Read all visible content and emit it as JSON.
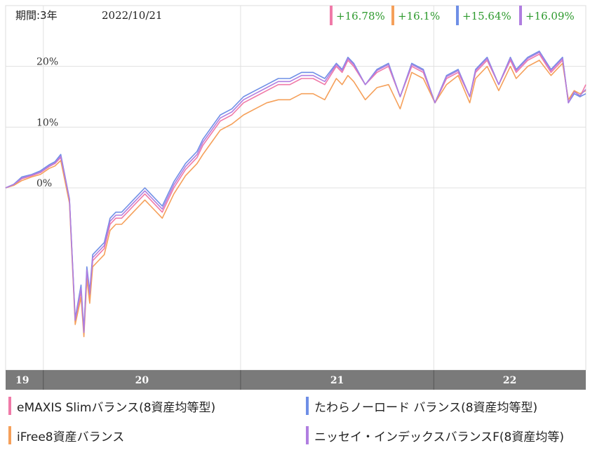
{
  "header": {
    "period_label": "期間:3年",
    "date": "2022/10/21",
    "returns": [
      {
        "text": "+16.78%",
        "color": "#f07aa8"
      },
      {
        "text": "+16.1%",
        "color": "#f5a05a"
      },
      {
        "text": "+15.64%",
        "color": "#6f8fe6"
      },
      {
        "text": "+16.09%",
        "color": "#b07ee0"
      }
    ],
    "return_text_color": "#2e9a2e"
  },
  "chart_data": {
    "type": "line",
    "ylim": [
      -30,
      30
    ],
    "yticks": [
      {
        "value": 0,
        "label": "0%"
      },
      {
        "value": 10,
        "label": "10%"
      },
      {
        "value": 20,
        "label": "20%"
      }
    ],
    "year_axis": [
      {
        "label": "19",
        "start": 0.0,
        "end": 0.065
      },
      {
        "label": "20",
        "start": 0.065,
        "end": 0.405
      },
      {
        "label": "21",
        "start": 0.405,
        "end": 0.738
      },
      {
        "label": "22",
        "start": 0.738,
        "end": 1.0
      }
    ],
    "grid": true,
    "series": [
      {
        "name": "eMAXIS Slimバランス(8資産均等型)",
        "color": "#f07aa8",
        "x": [
          0,
          0.014,
          0.028,
          0.045,
          0.06,
          0.075,
          0.085,
          0.095,
          0.11,
          0.12,
          0.13,
          0.135,
          0.14,
          0.145,
          0.15,
          0.16,
          0.17,
          0.18,
          0.19,
          0.2,
          0.21,
          0.22,
          0.23,
          0.24,
          0.25,
          0.27,
          0.29,
          0.31,
          0.33,
          0.34,
          0.355,
          0.37,
          0.39,
          0.41,
          0.43,
          0.45,
          0.47,
          0.49,
          0.51,
          0.53,
          0.55,
          0.57,
          0.58,
          0.59,
          0.6,
          0.62,
          0.64,
          0.66,
          0.68,
          0.7,
          0.72,
          0.74,
          0.76,
          0.78,
          0.8,
          0.81,
          0.82,
          0.83,
          0.85,
          0.87,
          0.88,
          0.9,
          0.92,
          0.94,
          0.96,
          0.97,
          0.98,
          0.99,
          1.0
        ],
        "y": [
          0,
          0.5,
          1.5,
          2,
          2.5,
          3.5,
          4,
          5,
          -2,
          -22,
          -17,
          -24,
          -14,
          -18,
          -12,
          -11,
          -10,
          -6,
          -5,
          -5,
          -4,
          -3,
          -2,
          -1,
          -2,
          -4,
          0,
          3,
          5,
          7,
          9,
          11,
          12,
          14,
          15,
          16,
          17,
          17,
          18,
          18,
          17,
          20,
          19,
          21,
          20,
          17,
          19,
          20,
          15,
          20,
          19,
          14,
          18,
          19,
          15,
          19,
          20,
          21,
          17,
          21,
          19,
          21,
          22,
          19,
          21,
          14,
          16,
          15,
          17
        ]
      },
      {
        "name": "わらノーロード バランス(8資産均等型)",
        "color": "#6f8fe6",
        "x": [
          0,
          0.014,
          0.028,
          0.045,
          0.06,
          0.075,
          0.085,
          0.095,
          0.11,
          0.12,
          0.13,
          0.135,
          0.14,
          0.145,
          0.15,
          0.16,
          0.17,
          0.18,
          0.19,
          0.2,
          0.21,
          0.22,
          0.23,
          0.24,
          0.25,
          0.27,
          0.29,
          0.31,
          0.33,
          0.34,
          0.355,
          0.37,
          0.39,
          0.41,
          0.43,
          0.45,
          0.47,
          0.49,
          0.51,
          0.53,
          0.55,
          0.57,
          0.58,
          0.59,
          0.6,
          0.62,
          0.64,
          0.66,
          0.68,
          0.7,
          0.72,
          0.74,
          0.76,
          0.78,
          0.8,
          0.81,
          0.82,
          0.83,
          0.85,
          0.87,
          0.88,
          0.9,
          0.92,
          0.94,
          0.96,
          0.97,
          0.98,
          0.99,
          1.0
        ],
        "y": [
          0,
          0.6,
          1.8,
          2.2,
          2.8,
          3.8,
          4.3,
          5.5,
          -1.8,
          -21.5,
          -16,
          -23.5,
          -13,
          -17,
          -11,
          -10,
          -9,
          -5,
          -4,
          -4,
          -3,
          -2,
          -1,
          0,
          -1,
          -3,
          1,
          4,
          6,
          8,
          10,
          12,
          13,
          15,
          16,
          17,
          18,
          18,
          19,
          19,
          18,
          20.5,
          19.5,
          21.5,
          20.5,
          17,
          19.5,
          20.5,
          15,
          20.5,
          19.5,
          14,
          18.5,
          19.5,
          15,
          19.5,
          20.5,
          21.5,
          17,
          21.5,
          19.5,
          21.5,
          22.5,
          19.5,
          21.5,
          14,
          15.5,
          15,
          15.5
        ]
      },
      {
        "name": "iFree8資産バランス",
        "color": "#f5a05a",
        "x": [
          0,
          0.014,
          0.028,
          0.045,
          0.06,
          0.075,
          0.085,
          0.095,
          0.11,
          0.12,
          0.13,
          0.135,
          0.14,
          0.145,
          0.15,
          0.16,
          0.17,
          0.18,
          0.19,
          0.2,
          0.21,
          0.22,
          0.23,
          0.24,
          0.25,
          0.27,
          0.29,
          0.31,
          0.33,
          0.34,
          0.355,
          0.37,
          0.39,
          0.41,
          0.43,
          0.45,
          0.47,
          0.49,
          0.51,
          0.53,
          0.55,
          0.57,
          0.58,
          0.59,
          0.6,
          0.62,
          0.64,
          0.66,
          0.68,
          0.7,
          0.72,
          0.74,
          0.76,
          0.78,
          0.8,
          0.81,
          0.82,
          0.83,
          0.85,
          0.87,
          0.88,
          0.9,
          0.92,
          0.94,
          0.96,
          0.97,
          0.98,
          0.99,
          1.0
        ],
        "y": [
          0,
          0.4,
          1.2,
          1.8,
          2.2,
          3.2,
          3.6,
          4.5,
          -2.5,
          -22.5,
          -18,
          -24.5,
          -15,
          -19,
          -13,
          -12,
          -11,
          -7,
          -6,
          -6,
          -5,
          -4,
          -3,
          -2,
          -3,
          -5,
          -1,
          2,
          4,
          5.5,
          7.5,
          9.5,
          10.5,
          12,
          13,
          14,
          14.5,
          14.5,
          15.5,
          15.5,
          14.5,
          18,
          17,
          18.5,
          17.5,
          14.5,
          16.5,
          17,
          13,
          19,
          18,
          14,
          17,
          18.5,
          14,
          18,
          19,
          20,
          16,
          20,
          18,
          20,
          21,
          18.5,
          20.5,
          14.5,
          16,
          15.5,
          16
        ]
      },
      {
        "name": "ニッセイ・インデックスバランスF(8資産均等)",
        "color": "#b07ee0",
        "x": [
          0,
          0.014,
          0.028,
          0.045,
          0.06,
          0.075,
          0.085,
          0.095,
          0.11,
          0.12,
          0.13,
          0.135,
          0.14,
          0.145,
          0.15,
          0.16,
          0.17,
          0.18,
          0.19,
          0.2,
          0.21,
          0.22,
          0.23,
          0.24,
          0.25,
          0.27,
          0.29,
          0.31,
          0.33,
          0.34,
          0.355,
          0.37,
          0.39,
          0.41,
          0.43,
          0.45,
          0.47,
          0.49,
          0.51,
          0.53,
          0.55,
          0.57,
          0.58,
          0.59,
          0.6,
          0.62,
          0.64,
          0.66,
          0.68,
          0.7,
          0.72,
          0.74,
          0.76,
          0.78,
          0.8,
          0.81,
          0.82,
          0.83,
          0.85,
          0.87,
          0.88,
          0.9,
          0.92,
          0.94,
          0.96,
          0.97,
          0.98,
          0.99,
          1.0
        ],
        "y": [
          0,
          0.55,
          1.6,
          2.1,
          2.6,
          3.6,
          4.1,
          5.2,
          -1.9,
          -21.8,
          -16.5,
          -23.8,
          -13.5,
          -17.5,
          -11.5,
          -10.5,
          -9.5,
          -5.5,
          -4.5,
          -4.5,
          -3.5,
          -2.5,
          -1.5,
          -0.5,
          -1.5,
          -3.5,
          0.5,
          3.5,
          5.5,
          7.5,
          9.5,
          11.5,
          12.5,
          14.5,
          15.5,
          16.5,
          17.5,
          17.5,
          18.5,
          18.5,
          17.5,
          20.3,
          19.3,
          21.3,
          20.3,
          17,
          19.3,
          20.3,
          15,
          20.3,
          19.3,
          14,
          18.3,
          19.3,
          15,
          19.3,
          20.3,
          21.3,
          17,
          21.3,
          19.3,
          21.3,
          22.3,
          19.3,
          21.3,
          14,
          15.8,
          15.2,
          16.2
        ]
      }
    ]
  },
  "legend": [
    {
      "label": "eMAXIS Slimバランス(8資産均等型)",
      "color": "#f07aa8"
    },
    {
      "label": "たわらノーロード バランス(8資産均等型)",
      "color": "#6f8fe6"
    },
    {
      "label": "iFree8資産バランス",
      "color": "#f5a05a"
    },
    {
      "label": "ニッセイ・インデックスバランスF(8資産均等)",
      "color": "#b07ee0"
    }
  ]
}
